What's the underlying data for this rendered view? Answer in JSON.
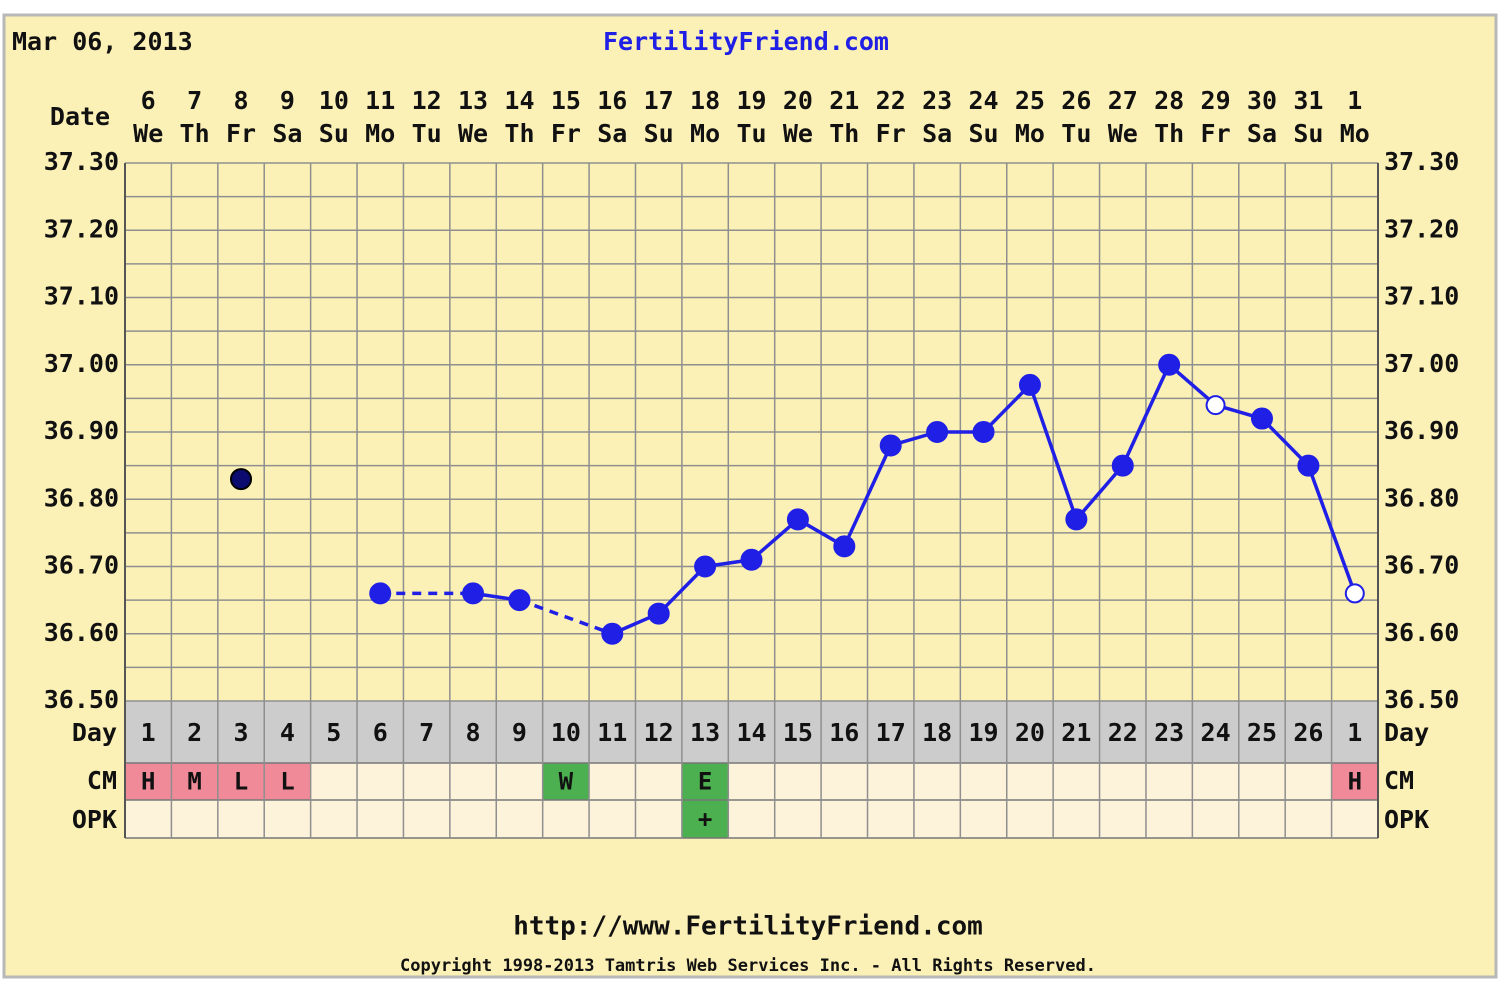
{
  "chart_data": {
    "type": "line",
    "chart_date": "Mar 06, 2013",
    "site": "FertilityFriend.com",
    "date_label": "Date",
    "day_label": "Day",
    "cm_label": "CM",
    "opk_label": "OPK",
    "url": "http://www.FertilityFriend.com",
    "copyright": "Copyright 1998-2013 Tamtris Web Services Inc. - All Rights Reserved.",
    "background": "#fbf0b6",
    "grid": true,
    "categories": [
      "6",
      "7",
      "8",
      "9",
      "10",
      "11",
      "12",
      "13",
      "14",
      "15",
      "16",
      "17",
      "18",
      "19",
      "20",
      "21",
      "22",
      "23",
      "24",
      "25",
      "26",
      "27",
      "28",
      "29",
      "30",
      "31",
      "1"
    ],
    "weekdays": [
      "We",
      "Th",
      "Fr",
      "Sa",
      "Su",
      "Mo",
      "Tu",
      "We",
      "Th",
      "Fr",
      "Sa",
      "Su",
      "Mo",
      "Tu",
      "We",
      "Th",
      "Fr",
      "Sa",
      "Su",
      "Mo",
      "Tu",
      "We",
      "Th",
      "Fr",
      "Sa",
      "Su",
      "Mo"
    ],
    "cycle_days": [
      "1",
      "2",
      "3",
      "4",
      "5",
      "6",
      "7",
      "8",
      "9",
      "10",
      "11",
      "12",
      "13",
      "14",
      "15",
      "16",
      "17",
      "18",
      "19",
      "20",
      "21",
      "22",
      "23",
      "24",
      "25",
      "26",
      "1"
    ],
    "cm": [
      {
        "label": "H",
        "color": "#f08a98"
      },
      {
        "label": "M",
        "color": "#f08a98"
      },
      {
        "label": "L",
        "color": "#f08a98"
      },
      {
        "label": "L",
        "color": "#f08a98"
      },
      null,
      null,
      null,
      null,
      null,
      {
        "label": "W",
        "color": "#4caf50"
      },
      null,
      null,
      {
        "label": "E",
        "color": "#4caf50"
      },
      null,
      null,
      null,
      null,
      null,
      null,
      null,
      null,
      null,
      null,
      null,
      null,
      null,
      {
        "label": "H",
        "color": "#f08a98"
      }
    ],
    "opk": [
      null,
      null,
      null,
      null,
      null,
      null,
      null,
      null,
      null,
      null,
      null,
      null,
      {
        "label": "+",
        "color": "#4caf50"
      },
      null,
      null,
      null,
      null,
      null,
      null,
      null,
      null,
      null,
      null,
      null,
      null,
      null,
      null
    ],
    "ylim": [
      36.5,
      37.3
    ],
    "yticks": [
      {
        "value": 36.5,
        "label": "36.50"
      },
      {
        "value": 36.6,
        "label": "36.60"
      },
      {
        "value": 36.7,
        "label": "36.70"
      },
      {
        "value": 36.8,
        "label": "36.80"
      },
      {
        "value": 36.9,
        "label": "36.90"
      },
      {
        "value": 37.0,
        "label": "37.00"
      },
      {
        "value": 37.1,
        "label": "37.10"
      },
      {
        "value": 37.2,
        "label": "37.20"
      },
      {
        "value": 37.3,
        "label": "37.30"
      }
    ],
    "series": [
      {
        "color": "#1f1fe6",
        "values": [
          null,
          null,
          null,
          null,
          null,
          36.66,
          null,
          36.66,
          36.65,
          null,
          36.6,
          36.63,
          36.7,
          36.71,
          36.77,
          36.73,
          36.88,
          36.9,
          36.9,
          36.97,
          36.77,
          36.85,
          37.0,
          36.94,
          36.92,
          36.85,
          36.66
        ],
        "markers": [
          null,
          null,
          null,
          null,
          null,
          "filled",
          null,
          "filled",
          "filled",
          null,
          "filled",
          "filled",
          "filled",
          "filled",
          "filled",
          "filled",
          "filled",
          "filled",
          "filled",
          "filled",
          "filled",
          "filled",
          "filled",
          "open",
          "filled",
          "filled",
          "open"
        ]
      },
      {
        "color": "#0b0b70",
        "values": [
          null,
          null,
          36.83,
          null,
          null,
          null,
          null,
          null,
          null,
          null,
          null,
          null,
          null,
          null,
          null,
          null,
          null,
          null,
          null,
          null,
          null,
          null,
          null,
          null,
          null,
          null,
          null
        ],
        "markers": [
          null,
          null,
          "filled",
          null,
          null,
          null,
          null,
          null,
          null,
          null,
          null,
          null,
          null,
          null,
          null,
          null,
          null,
          null,
          null,
          null,
          null,
          null,
          null,
          null,
          null,
          null,
          null
        ]
      }
    ]
  }
}
